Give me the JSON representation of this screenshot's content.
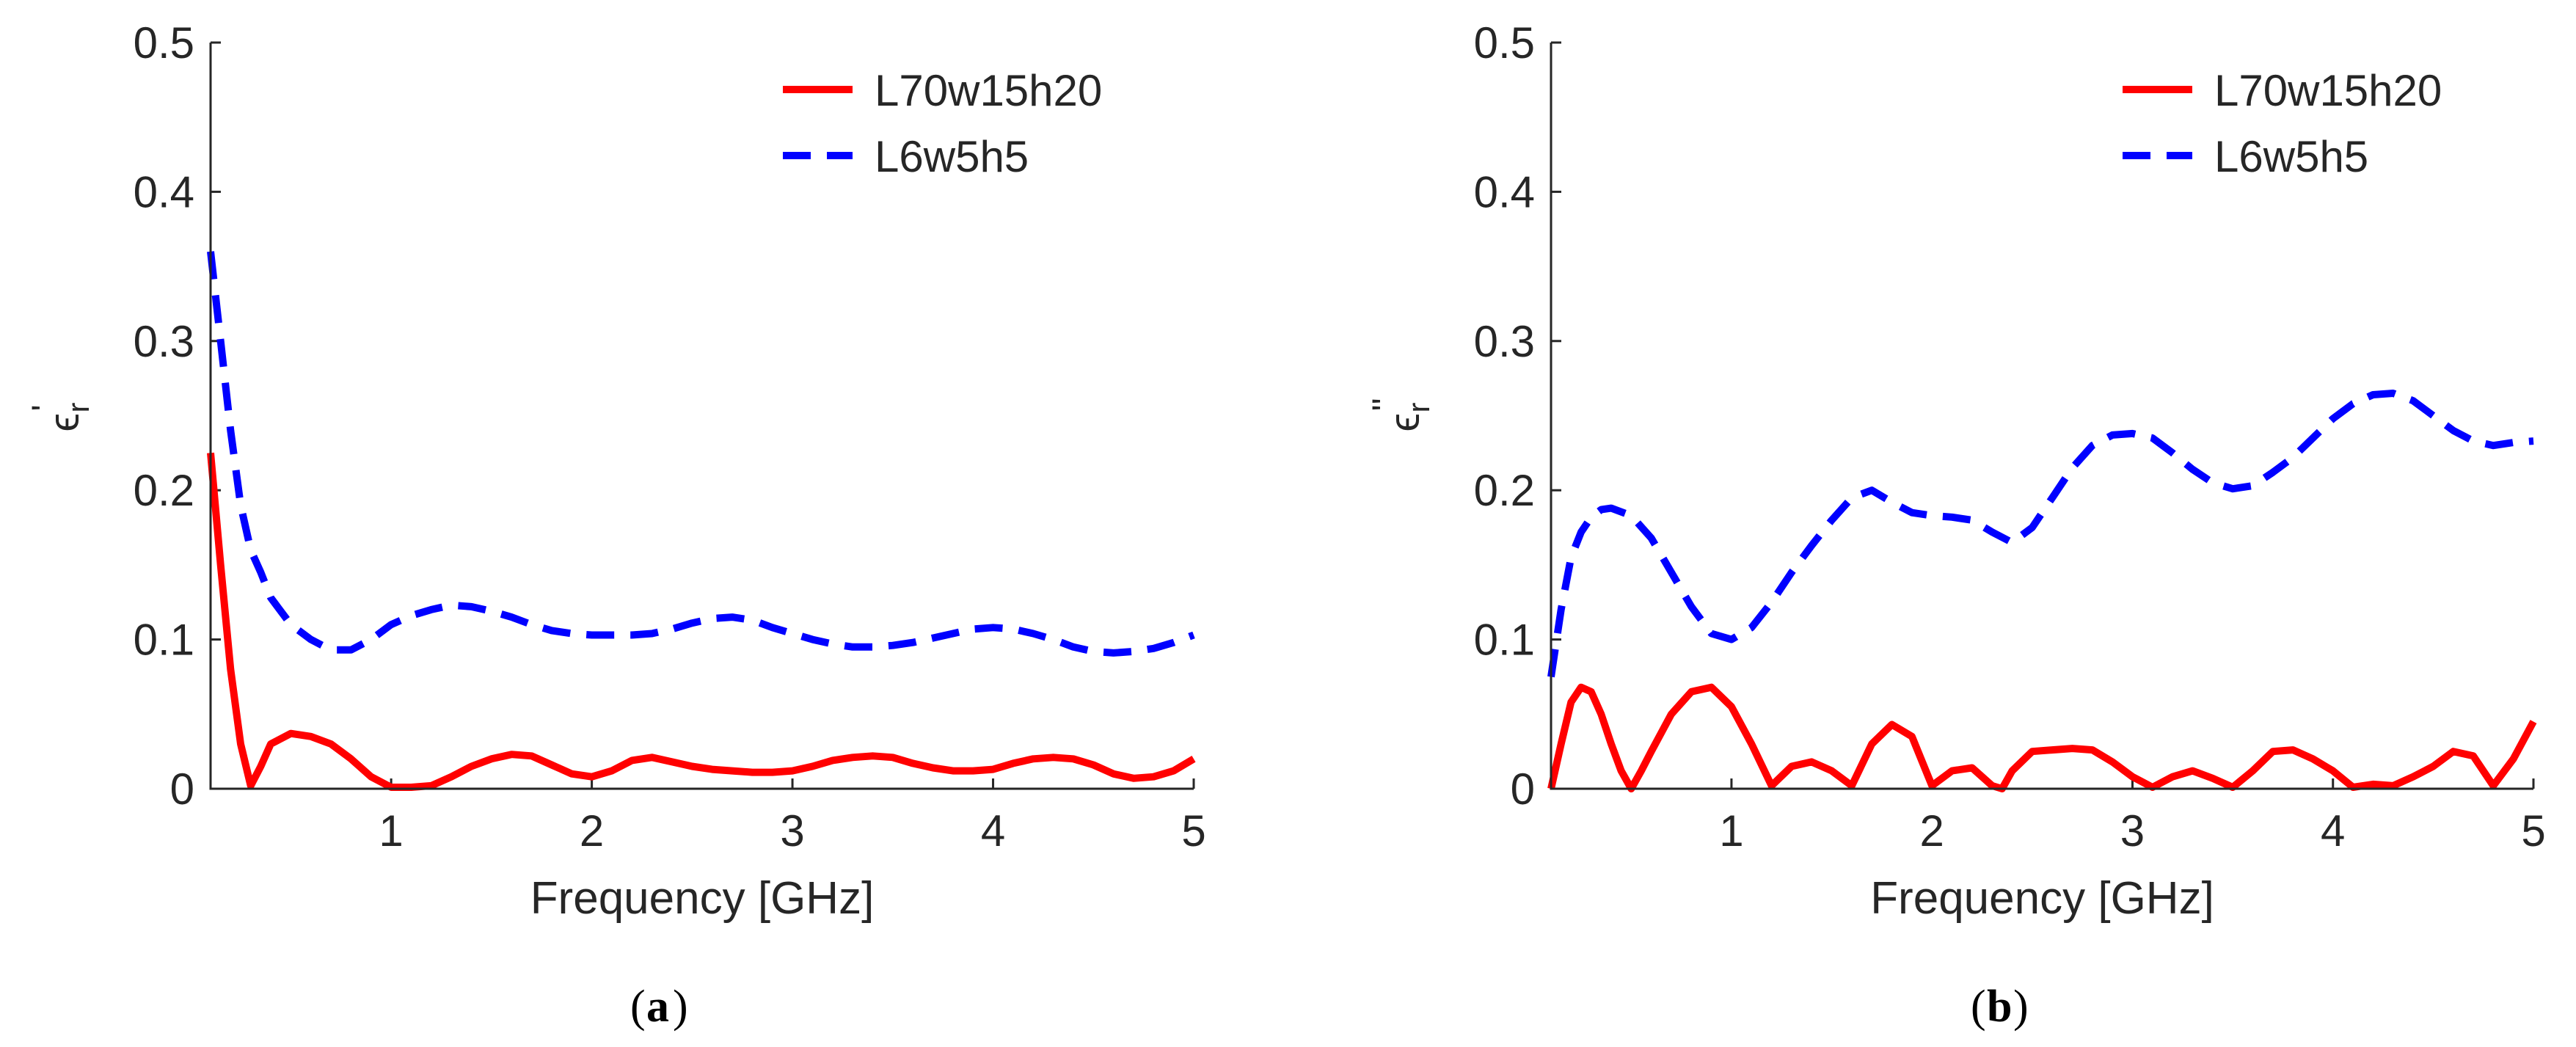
{
  "chart_data": [
    {
      "type": "line",
      "panel_label": "a",
      "xlabel": "Frequency [GHz]",
      "ylabel_symbol": "ϵ",
      "ylabel_sub": "r",
      "ylabel_sup": "'",
      "xlim": [
        0.1,
        5
      ],
      "ylim": [
        0,
        0.5
      ],
      "xticks": [
        1,
        2,
        3,
        4,
        5
      ],
      "yticks": [
        0,
        0.1,
        0.2,
        0.3,
        0.4,
        0.5
      ],
      "legend_position": "top-right",
      "series": [
        {
          "name": "L70w15h20",
          "color": "#ff0000",
          "style": "solid",
          "x": [
            0.1,
            0.15,
            0.2,
            0.25,
            0.3,
            0.35,
            0.4,
            0.5,
            0.6,
            0.7,
            0.8,
            0.9,
            1.0,
            1.1,
            1.2,
            1.3,
            1.4,
            1.5,
            1.6,
            1.7,
            1.8,
            1.9,
            2.0,
            2.1,
            2.2,
            2.3,
            2.4,
            2.5,
            2.6,
            2.7,
            2.8,
            2.9,
            3.0,
            3.1,
            3.2,
            3.3,
            3.4,
            3.5,
            3.6,
            3.7,
            3.8,
            3.9,
            4.0,
            4.1,
            4.2,
            4.3,
            4.4,
            4.5,
            4.6,
            4.7,
            4.8,
            4.9,
            5.0
          ],
          "y": [
            0.225,
            0.15,
            0.08,
            0.03,
            0.002,
            0.015,
            0.03,
            0.037,
            0.035,
            0.03,
            0.02,
            0.008,
            0.001,
            0.001,
            0.002,
            0.008,
            0.015,
            0.02,
            0.023,
            0.022,
            0.016,
            0.01,
            0.008,
            0.012,
            0.019,
            0.021,
            0.018,
            0.015,
            0.013,
            0.012,
            0.011,
            0.011,
            0.012,
            0.015,
            0.019,
            0.021,
            0.022,
            0.021,
            0.017,
            0.014,
            0.012,
            0.012,
            0.013,
            0.017,
            0.02,
            0.021,
            0.02,
            0.016,
            0.01,
            0.007,
            0.008,
            0.012,
            0.02
          ]
        },
        {
          "name": "L6w5h5",
          "color": "#0000ff",
          "style": "dashed",
          "x": [
            0.1,
            0.15,
            0.2,
            0.25,
            0.3,
            0.35,
            0.4,
            0.5,
            0.6,
            0.7,
            0.8,
            0.9,
            1.0,
            1.1,
            1.2,
            1.3,
            1.4,
            1.5,
            1.6,
            1.7,
            1.8,
            1.9,
            2.0,
            2.1,
            2.2,
            2.3,
            2.4,
            2.5,
            2.6,
            2.7,
            2.8,
            2.9,
            3.0,
            3.1,
            3.2,
            3.3,
            3.4,
            3.5,
            3.6,
            3.7,
            3.8,
            3.9,
            4.0,
            4.1,
            4.2,
            4.3,
            4.4,
            4.5,
            4.6,
            4.7,
            4.8,
            4.9,
            5.0
          ],
          "y": [
            0.36,
            0.3,
            0.24,
            0.19,
            0.16,
            0.145,
            0.128,
            0.11,
            0.1,
            0.093,
            0.093,
            0.1,
            0.11,
            0.116,
            0.12,
            0.123,
            0.122,
            0.119,
            0.115,
            0.11,
            0.106,
            0.104,
            0.103,
            0.103,
            0.103,
            0.104,
            0.107,
            0.111,
            0.114,
            0.115,
            0.113,
            0.108,
            0.104,
            0.1,
            0.097,
            0.095,
            0.095,
            0.096,
            0.098,
            0.101,
            0.104,
            0.107,
            0.108,
            0.107,
            0.104,
            0.1,
            0.095,
            0.092,
            0.091,
            0.092,
            0.094,
            0.098,
            0.103
          ]
        }
      ]
    },
    {
      "type": "line",
      "panel_label": "b",
      "xlabel": "Frequency [GHz]",
      "ylabel_symbol": "ϵ",
      "ylabel_sub": "r",
      "ylabel_sup": "''",
      "xlim": [
        0.1,
        5
      ],
      "ylim": [
        0,
        0.5
      ],
      "xticks": [
        1,
        2,
        3,
        4,
        5
      ],
      "yticks": [
        0,
        0.1,
        0.2,
        0.3,
        0.4,
        0.5
      ],
      "legend_position": "top-right",
      "series": [
        {
          "name": "L70w15h20",
          "color": "#ff0000",
          "style": "solid",
          "x": [
            0.1,
            0.15,
            0.2,
            0.25,
            0.3,
            0.35,
            0.4,
            0.45,
            0.5,
            0.55,
            0.6,
            0.7,
            0.8,
            0.9,
            1.0,
            1.1,
            1.2,
            1.3,
            1.4,
            1.5,
            1.6,
            1.7,
            1.8,
            1.9,
            2.0,
            2.1,
            2.2,
            2.3,
            2.35,
            2.4,
            2.5,
            2.6,
            2.7,
            2.8,
            2.9,
            3.0,
            3.1,
            3.2,
            3.3,
            3.4,
            3.5,
            3.6,
            3.7,
            3.8,
            3.9,
            4.0,
            4.1,
            4.2,
            4.3,
            4.4,
            4.5,
            4.6,
            4.7,
            4.8,
            4.9,
            5.0
          ],
          "y": [
            0.0,
            0.03,
            0.058,
            0.068,
            0.065,
            0.05,
            0.03,
            0.012,
            0.0,
            0.012,
            0.025,
            0.05,
            0.065,
            0.068,
            0.055,
            0.03,
            0.002,
            0.015,
            0.018,
            0.012,
            0.002,
            0.03,
            0.043,
            0.035,
            0.002,
            0.012,
            0.014,
            0.002,
            0.0,
            0.012,
            0.025,
            0.026,
            0.027,
            0.026,
            0.018,
            0.008,
            0.001,
            0.008,
            0.012,
            0.007,
            0.001,
            0.012,
            0.025,
            0.026,
            0.02,
            0.012,
            0.001,
            0.003,
            0.002,
            0.008,
            0.015,
            0.025,
            0.022,
            0.002,
            0.02,
            0.045
          ]
        },
        {
          "name": "L6w5h5",
          "color": "#0000ff",
          "style": "dashed",
          "x": [
            0.1,
            0.15,
            0.2,
            0.25,
            0.3,
            0.35,
            0.4,
            0.5,
            0.6,
            0.7,
            0.8,
            0.9,
            1.0,
            1.1,
            1.2,
            1.3,
            1.4,
            1.5,
            1.6,
            1.7,
            1.8,
            1.9,
            2.0,
            2.1,
            2.2,
            2.3,
            2.4,
            2.5,
            2.6,
            2.7,
            2.8,
            2.9,
            3.0,
            3.1,
            3.2,
            3.3,
            3.4,
            3.5,
            3.6,
            3.7,
            3.8,
            3.9,
            4.0,
            4.1,
            4.2,
            4.3,
            4.4,
            4.5,
            4.6,
            4.7,
            4.8,
            4.9,
            5.0
          ],
          "y": [
            0.075,
            0.12,
            0.155,
            0.172,
            0.182,
            0.187,
            0.188,
            0.183,
            0.168,
            0.145,
            0.122,
            0.104,
            0.1,
            0.108,
            0.125,
            0.145,
            0.163,
            0.18,
            0.195,
            0.2,
            0.192,
            0.185,
            0.183,
            0.182,
            0.18,
            0.172,
            0.165,
            0.175,
            0.195,
            0.215,
            0.23,
            0.237,
            0.238,
            0.235,
            0.225,
            0.214,
            0.205,
            0.201,
            0.203,
            0.212,
            0.222,
            0.235,
            0.248,
            0.258,
            0.264,
            0.265,
            0.26,
            0.25,
            0.24,
            0.233,
            0.23,
            0.232,
            0.233
          ]
        }
      ]
    }
  ]
}
